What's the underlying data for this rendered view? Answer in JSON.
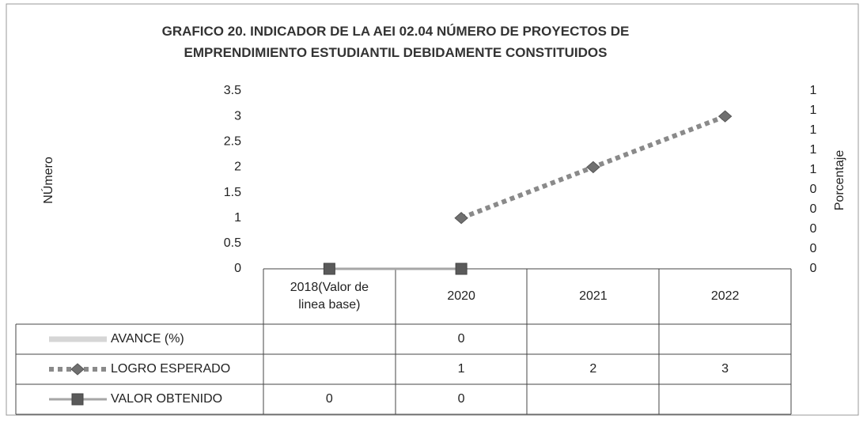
{
  "chart_data": {
    "type": "line",
    "title": "GRAFICO 20.  INDICADOR  DE LA AEI 02.04 NÚMERO DE PROYECTOS DE\nEMPRENDIMIENTO ESTUDIANTIL DEBIDAMENTE CONSTITUIDOS",
    "y_label": "NÚmero",
    "y2_label": "Porcentaje",
    "categories": [
      "2018(Valor de\nlinea base)",
      "2020",
      "2021",
      "2022"
    ],
    "ylim": [
      0,
      3.5
    ],
    "yticks": [
      0,
      0.5,
      1,
      1.5,
      2,
      2.5,
      3,
      3.5
    ],
    "y2lim": [
      0,
      0.9
    ],
    "y2ticks": [
      0,
      {
        "value": 0.1,
        "label": "0"
      },
      {
        "value": 0.2,
        "label": "0"
      },
      {
        "value": 0.3,
        "label": "0"
      },
      {
        "value": 0.4,
        "label": "0"
      },
      {
        "value": 0.5,
        "label": "1"
      },
      {
        "value": 0.6,
        "label": "1"
      },
      {
        "value": 0.7,
        "label": "1"
      },
      {
        "value": 0.8,
        "label": "1"
      },
      {
        "value": 0.9,
        "label": "1"
      }
    ],
    "series": [
      {
        "name": "AVANCE (%)",
        "color": "#d6d6d6",
        "axis": "y2",
        "values": [
          null,
          0,
          null,
          null
        ]
      },
      {
        "name": "LOGRO ESPERADO",
        "color": "#8a8a8a",
        "dash": true,
        "marker": "diamond",
        "values": [
          null,
          1,
          2,
          3
        ]
      },
      {
        "name": "VALOR OBTENIDO",
        "color": "#a6a6a6",
        "marker": "square",
        "values": [
          0,
          0,
          null,
          null
        ]
      }
    ]
  }
}
